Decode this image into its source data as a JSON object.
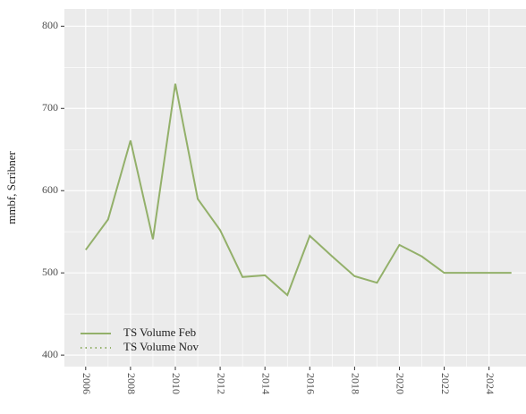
{
  "chart_data": {
    "type": "line",
    "y_label": "mmbf, Scribner",
    "x": [
      2006,
      2007,
      2008,
      2009,
      2010,
      2011,
      2012,
      2013,
      2014,
      2015,
      2016,
      2017,
      2018,
      2019,
      2020,
      2021,
      2022,
      2023,
      2024,
      2025
    ],
    "series": [
      {
        "name": "TS Volume Feb",
        "color": "#93b06a",
        "dash": "solid",
        "values": [
          528,
          565,
          661,
          541,
          730,
          590,
          552,
          495,
          497,
          473,
          545,
          520,
          496,
          488,
          534,
          520,
          500,
          500,
          500,
          500
        ]
      },
      {
        "name": "TS Volume Nov",
        "color": "#93b06a",
        "dash": "dotted",
        "values": [
          null,
          null,
          null,
          null,
          null,
          null,
          null,
          null,
          null,
          null,
          null,
          null,
          null,
          null,
          null,
          null,
          null,
          null,
          null,
          null
        ]
      }
    ],
    "xlim": [
      2005.05,
      2025.65
    ],
    "xticks": [
      2006,
      2008,
      2010,
      2012,
      2014,
      2016,
      2018,
      2020,
      2022,
      2024
    ],
    "ylim": [
      386,
      821
    ],
    "yticks": [
      400,
      500,
      600,
      700,
      800
    ],
    "grid": true,
    "legend": "bottom-left"
  }
}
